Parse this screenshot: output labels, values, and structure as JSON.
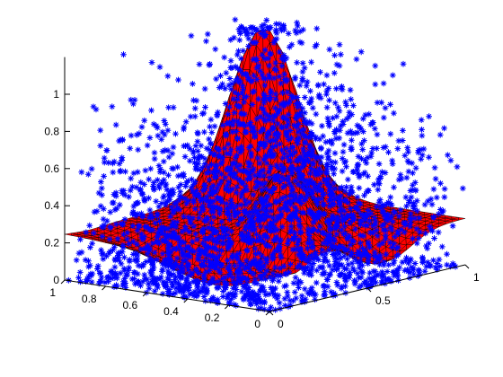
{
  "chart_data": {
    "type": "scatter",
    "subtype": "3d-surface-with-scatter",
    "title": "",
    "xlabel": "",
    "ylabel": "",
    "zlabel": "",
    "xlim": [
      0,
      1
    ],
    "ylim": [
      0,
      1
    ],
    "zlim": [
      0,
      1.2
    ],
    "x_ticks": [
      "0",
      "0.5",
      "1"
    ],
    "y_ticks": [
      "0",
      "0.2",
      "0.4",
      "0.6",
      "0.8",
      "1"
    ],
    "z_ticks": [
      "0",
      "0.2",
      "0.4",
      "0.6",
      "0.8",
      "1"
    ],
    "grid": false,
    "legend": "none",
    "surface": {
      "color": "#ff0000",
      "edge_color": "#000000",
      "base_level": 0.25,
      "peak": {
        "x": 0.75,
        "y": 0.75,
        "z": 1.2
      },
      "ridge": "diagonal decline from peak toward (0.5, 0.25) with height about 0.55",
      "min_level": 0.05
    },
    "scatter_series": {
      "marker": "asterisk",
      "color": "#0000ff",
      "distribution": "dense noisy cloud over the unit square, z spanning roughly 0 to 1.2, following the surface shape"
    },
    "colors": {
      "surface": "#ff0000",
      "scatter": "#0000ff",
      "axes": "#000000"
    }
  }
}
